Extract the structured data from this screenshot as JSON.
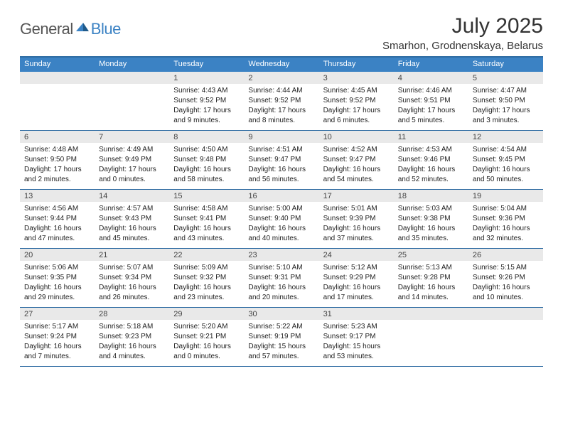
{
  "logo": {
    "text1": "General",
    "text2": "Blue"
  },
  "title": "July 2025",
  "location": "Smarhon, Grodnenskaya, Belarus",
  "colors": {
    "header_bg": "#3b82c4",
    "border": "#2f6ca3",
    "daynum_bg": "#e9e9e9",
    "text": "#222222",
    "logo_blue": "#3b82c4",
    "logo_gray": "#555555"
  },
  "dayNames": [
    "Sunday",
    "Monday",
    "Tuesday",
    "Wednesday",
    "Thursday",
    "Friday",
    "Saturday"
  ],
  "weeks": [
    [
      {
        "empty": true
      },
      {
        "empty": true
      },
      {
        "num": "1",
        "sunrise": "Sunrise: 4:43 AM",
        "sunset": "Sunset: 9:52 PM",
        "day1": "Daylight: 17 hours",
        "day2": "and 9 minutes."
      },
      {
        "num": "2",
        "sunrise": "Sunrise: 4:44 AM",
        "sunset": "Sunset: 9:52 PM",
        "day1": "Daylight: 17 hours",
        "day2": "and 8 minutes."
      },
      {
        "num": "3",
        "sunrise": "Sunrise: 4:45 AM",
        "sunset": "Sunset: 9:52 PM",
        "day1": "Daylight: 17 hours",
        "day2": "and 6 minutes."
      },
      {
        "num": "4",
        "sunrise": "Sunrise: 4:46 AM",
        "sunset": "Sunset: 9:51 PM",
        "day1": "Daylight: 17 hours",
        "day2": "and 5 minutes."
      },
      {
        "num": "5",
        "sunrise": "Sunrise: 4:47 AM",
        "sunset": "Sunset: 9:50 PM",
        "day1": "Daylight: 17 hours",
        "day2": "and 3 minutes."
      }
    ],
    [
      {
        "num": "6",
        "sunrise": "Sunrise: 4:48 AM",
        "sunset": "Sunset: 9:50 PM",
        "day1": "Daylight: 17 hours",
        "day2": "and 2 minutes."
      },
      {
        "num": "7",
        "sunrise": "Sunrise: 4:49 AM",
        "sunset": "Sunset: 9:49 PM",
        "day1": "Daylight: 17 hours",
        "day2": "and 0 minutes."
      },
      {
        "num": "8",
        "sunrise": "Sunrise: 4:50 AM",
        "sunset": "Sunset: 9:48 PM",
        "day1": "Daylight: 16 hours",
        "day2": "and 58 minutes."
      },
      {
        "num": "9",
        "sunrise": "Sunrise: 4:51 AM",
        "sunset": "Sunset: 9:47 PM",
        "day1": "Daylight: 16 hours",
        "day2": "and 56 minutes."
      },
      {
        "num": "10",
        "sunrise": "Sunrise: 4:52 AM",
        "sunset": "Sunset: 9:47 PM",
        "day1": "Daylight: 16 hours",
        "day2": "and 54 minutes."
      },
      {
        "num": "11",
        "sunrise": "Sunrise: 4:53 AM",
        "sunset": "Sunset: 9:46 PM",
        "day1": "Daylight: 16 hours",
        "day2": "and 52 minutes."
      },
      {
        "num": "12",
        "sunrise": "Sunrise: 4:54 AM",
        "sunset": "Sunset: 9:45 PM",
        "day1": "Daylight: 16 hours",
        "day2": "and 50 minutes."
      }
    ],
    [
      {
        "num": "13",
        "sunrise": "Sunrise: 4:56 AM",
        "sunset": "Sunset: 9:44 PM",
        "day1": "Daylight: 16 hours",
        "day2": "and 47 minutes."
      },
      {
        "num": "14",
        "sunrise": "Sunrise: 4:57 AM",
        "sunset": "Sunset: 9:43 PM",
        "day1": "Daylight: 16 hours",
        "day2": "and 45 minutes."
      },
      {
        "num": "15",
        "sunrise": "Sunrise: 4:58 AM",
        "sunset": "Sunset: 9:41 PM",
        "day1": "Daylight: 16 hours",
        "day2": "and 43 minutes."
      },
      {
        "num": "16",
        "sunrise": "Sunrise: 5:00 AM",
        "sunset": "Sunset: 9:40 PM",
        "day1": "Daylight: 16 hours",
        "day2": "and 40 minutes."
      },
      {
        "num": "17",
        "sunrise": "Sunrise: 5:01 AM",
        "sunset": "Sunset: 9:39 PM",
        "day1": "Daylight: 16 hours",
        "day2": "and 37 minutes."
      },
      {
        "num": "18",
        "sunrise": "Sunrise: 5:03 AM",
        "sunset": "Sunset: 9:38 PM",
        "day1": "Daylight: 16 hours",
        "day2": "and 35 minutes."
      },
      {
        "num": "19",
        "sunrise": "Sunrise: 5:04 AM",
        "sunset": "Sunset: 9:36 PM",
        "day1": "Daylight: 16 hours",
        "day2": "and 32 minutes."
      }
    ],
    [
      {
        "num": "20",
        "sunrise": "Sunrise: 5:06 AM",
        "sunset": "Sunset: 9:35 PM",
        "day1": "Daylight: 16 hours",
        "day2": "and 29 minutes."
      },
      {
        "num": "21",
        "sunrise": "Sunrise: 5:07 AM",
        "sunset": "Sunset: 9:34 PM",
        "day1": "Daylight: 16 hours",
        "day2": "and 26 minutes."
      },
      {
        "num": "22",
        "sunrise": "Sunrise: 5:09 AM",
        "sunset": "Sunset: 9:32 PM",
        "day1": "Daylight: 16 hours",
        "day2": "and 23 minutes."
      },
      {
        "num": "23",
        "sunrise": "Sunrise: 5:10 AM",
        "sunset": "Sunset: 9:31 PM",
        "day1": "Daylight: 16 hours",
        "day2": "and 20 minutes."
      },
      {
        "num": "24",
        "sunrise": "Sunrise: 5:12 AM",
        "sunset": "Sunset: 9:29 PM",
        "day1": "Daylight: 16 hours",
        "day2": "and 17 minutes."
      },
      {
        "num": "25",
        "sunrise": "Sunrise: 5:13 AM",
        "sunset": "Sunset: 9:28 PM",
        "day1": "Daylight: 16 hours",
        "day2": "and 14 minutes."
      },
      {
        "num": "26",
        "sunrise": "Sunrise: 5:15 AM",
        "sunset": "Sunset: 9:26 PM",
        "day1": "Daylight: 16 hours",
        "day2": "and 10 minutes."
      }
    ],
    [
      {
        "num": "27",
        "sunrise": "Sunrise: 5:17 AM",
        "sunset": "Sunset: 9:24 PM",
        "day1": "Daylight: 16 hours",
        "day2": "and 7 minutes."
      },
      {
        "num": "28",
        "sunrise": "Sunrise: 5:18 AM",
        "sunset": "Sunset: 9:23 PM",
        "day1": "Daylight: 16 hours",
        "day2": "and 4 minutes."
      },
      {
        "num": "29",
        "sunrise": "Sunrise: 5:20 AM",
        "sunset": "Sunset: 9:21 PM",
        "day1": "Daylight: 16 hours",
        "day2": "and 0 minutes."
      },
      {
        "num": "30",
        "sunrise": "Sunrise: 5:22 AM",
        "sunset": "Sunset: 9:19 PM",
        "day1": "Daylight: 15 hours",
        "day2": "and 57 minutes."
      },
      {
        "num": "31",
        "sunrise": "Sunrise: 5:23 AM",
        "sunset": "Sunset: 9:17 PM",
        "day1": "Daylight: 15 hours",
        "day2": "and 53 minutes."
      },
      {
        "empty": true
      },
      {
        "empty": true
      }
    ]
  ]
}
